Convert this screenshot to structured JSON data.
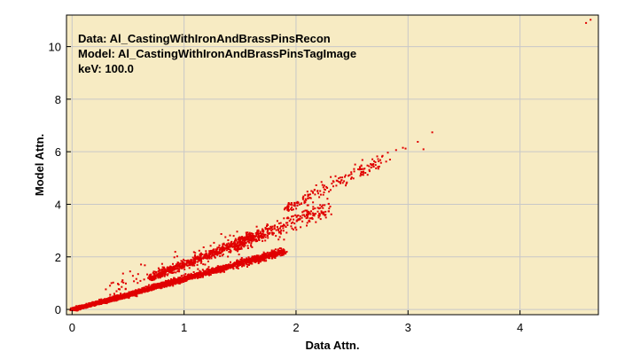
{
  "chart_data": {
    "type": "scatter",
    "title": "",
    "xlabel": "Data Attn.",
    "ylabel": "Model Attn.",
    "xlim": [
      -0.05,
      4.7
    ],
    "ylim": [
      -0.2,
      11.2
    ],
    "xticks": [
      0,
      1,
      2,
      3,
      4
    ],
    "yticks": [
      0,
      2,
      4,
      6,
      8,
      10
    ],
    "grid": true,
    "legend": "none",
    "annotations": [
      "Data: Al_CastingWithIronAndBrassPinsRecon",
      "Model: Al_CastingWithIronAndBrassPinsTagImage",
      "keV: 100.0"
    ],
    "colors": {
      "plot_background": "#f7ebc3",
      "point": "#e00000",
      "grid": "#c8c8c8"
    },
    "series": [
      {
        "clusters": [
          {
            "x0": 0.02,
            "x1": 1.9,
            "slope": 1.18,
            "intercept": -0.02,
            "spread": 0.06,
            "count": 2200
          },
          {
            "x0": 0.0,
            "x1": 0.5,
            "slope": 1.05,
            "intercept": 0.0,
            "spread": 0.04,
            "count": 700
          },
          {
            "x0": 0.7,
            "x1": 1.7,
            "slope": 1.7,
            "intercept": 0.0,
            "spread": 0.09,
            "count": 650
          },
          {
            "x0": 1.45,
            "x1": 2.3,
            "slope": 1.65,
            "intercept": 0.05,
            "spread": 0.14,
            "count": 300
          },
          {
            "x0": 1.9,
            "x1": 2.75,
            "slope": 2.08,
            "intercept": -0.1,
            "spread": 0.1,
            "count": 160
          },
          {
            "x0": 2.75,
            "x1": 3.25,
            "slope": 2.05,
            "intercept": 0.0,
            "spread": 0.08,
            "count": 14
          },
          {
            "x0": 0.3,
            "x1": 1.5,
            "slope": 1.55,
            "intercept": 0.2,
            "spread": 0.35,
            "count": 90
          }
        ],
        "outliers": [
          {
            "x": 4.59,
            "y": 10.9
          },
          {
            "x": 4.63,
            "y": 11.02
          }
        ]
      }
    ]
  }
}
